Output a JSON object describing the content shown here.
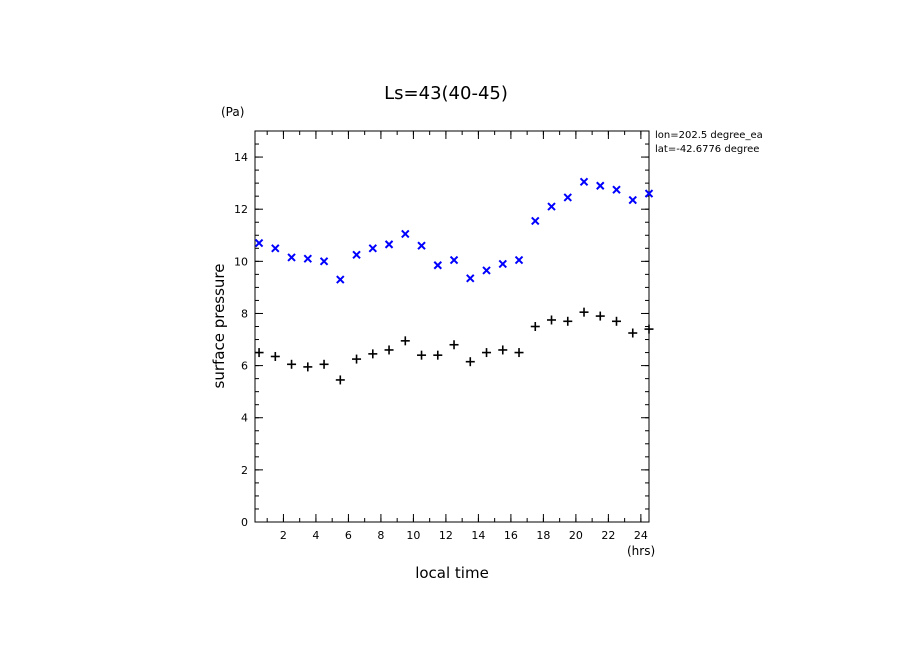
{
  "chart_data": {
    "type": "scatter",
    "title": "Ls=43(40-45)",
    "xlabel": "local time",
    "ylabel": "surface pressure",
    "x_unit": "(hrs)",
    "y_unit": "(Pa)",
    "xlim": [
      0.25,
      24.5
    ],
    "ylim": [
      0,
      15
    ],
    "x_ticks": [
      "2",
      "4",
      "6",
      "8",
      "10",
      "12",
      "14",
      "16",
      "18",
      "20",
      "22",
      "24"
    ],
    "y_ticks": [
      "0",
      "2",
      "4",
      "6",
      "8",
      "10",
      "12",
      "14"
    ],
    "annotations": [
      "lon=202.5 degree_ea",
      "lat=-42.6776 degree"
    ],
    "grid": false,
    "series": [
      {
        "marker": "x",
        "color": "#0000ff",
        "x": [
          0.5,
          1.5,
          2.5,
          3.5,
          4.5,
          5.5,
          6.5,
          7.5,
          8.5,
          9.5,
          10.5,
          11.5,
          12.5,
          13.5,
          14.5,
          15.5,
          16.5,
          17.5,
          18.5,
          19.5,
          20.5,
          21.5,
          22.5,
          23.5,
          24.5
        ],
        "y": [
          10.7,
          10.5,
          10.15,
          10.1,
          10.0,
          9.3,
          10.25,
          10.5,
          10.65,
          11.05,
          10.6,
          9.85,
          10.05,
          9.35,
          9.65,
          9.9,
          10.05,
          11.55,
          12.1,
          12.45,
          13.05,
          12.9,
          12.75,
          12.35,
          12.6
        ]
      },
      {
        "marker": "+",
        "color": "#000000",
        "x": [
          0.5,
          1.5,
          2.5,
          3.5,
          4.5,
          5.5,
          6.5,
          7.5,
          8.5,
          9.5,
          10.5,
          11.5,
          12.5,
          13.5,
          14.5,
          15.5,
          16.5,
          17.5,
          18.5,
          19.5,
          20.5,
          21.5,
          22.5,
          23.5,
          24.5
        ],
        "y": [
          6.5,
          6.35,
          6.05,
          5.95,
          6.05,
          5.45,
          6.25,
          6.45,
          6.6,
          6.95,
          6.4,
          6.4,
          6.8,
          6.15,
          6.5,
          6.6,
          6.5,
          7.5,
          7.75,
          7.7,
          8.05,
          7.9,
          7.7,
          7.25,
          7.4
        ]
      }
    ]
  }
}
